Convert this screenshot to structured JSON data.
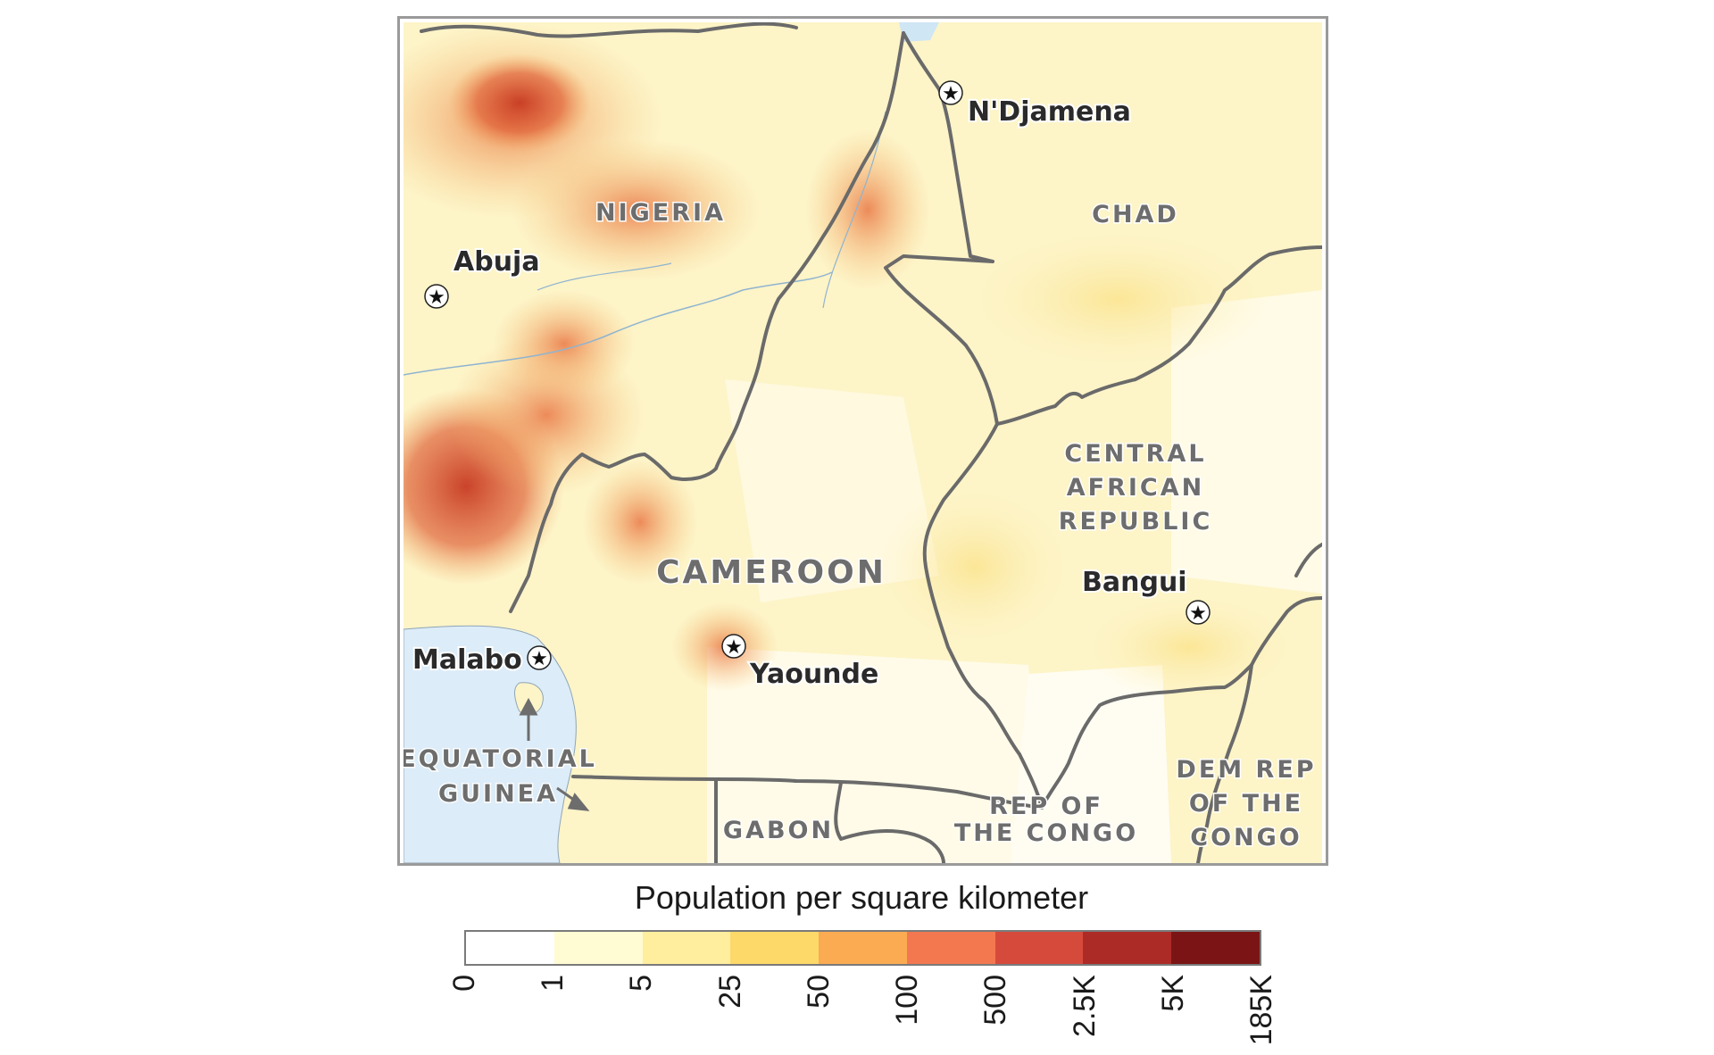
{
  "map": {
    "countries": {
      "nigeria": "NIGERIA",
      "chad": "CHAD",
      "car_line1": "CENTRAL",
      "car_line2": "AFRICAN",
      "car_line3": "REPUBLIC",
      "cameroon": "CAMEROON",
      "eq_line1": "EQUATORIAL",
      "eq_line2": "GUINEA",
      "gabon": "GABON",
      "rep_congo_line1": "REP OF",
      "rep_congo_line2": "THE CONGO",
      "drc_line1": "DEM REP",
      "drc_line2": "OF THE",
      "drc_line3": "CONGO"
    },
    "capitals": {
      "abuja": "Abuja",
      "ndjamena": "N'Djamena",
      "malabo": "Malabo",
      "yaounde": "Yaounde",
      "bangui": "Bangui"
    },
    "colors": {
      "water": "#dcecf8",
      "border": "#6a6a6a",
      "low_density": "#fdf5c4",
      "high_density": "#d2462a"
    }
  },
  "legend": {
    "title": "Population per square kilometer",
    "ticks": [
      "0",
      "1",
      "5",
      "25",
      "50",
      "100",
      "500",
      "2.5K",
      "5K",
      "185K"
    ],
    "colors": [
      "#ffffff",
      "#fffbd2",
      "#feee9e",
      "#fdd96a",
      "#fbab52",
      "#f37850",
      "#d64a3c",
      "#ad2b27",
      "#7b1515"
    ]
  }
}
